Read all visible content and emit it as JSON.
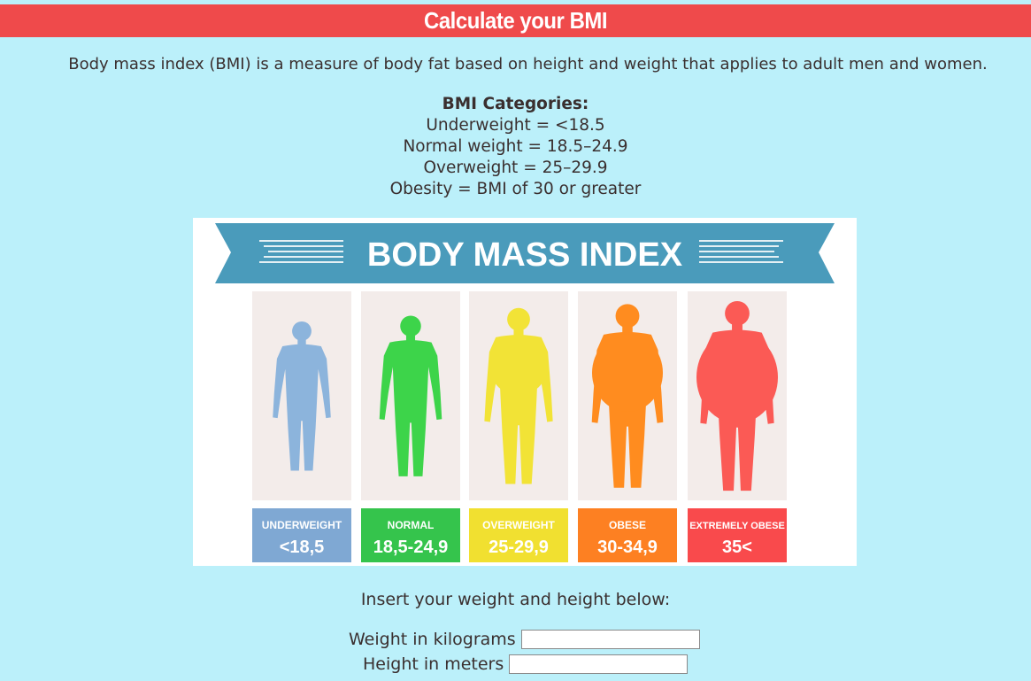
{
  "header": {
    "title": "Calculate your BMI"
  },
  "intro": "Body mass index (BMI) is a measure of body fat based on height and weight that applies to adult men and women.",
  "categories": {
    "title": "BMI Categories:",
    "lines": [
      "Underweight = <18.5",
      "Normal weight = 18.5–24.9",
      "Overweight = 25–29.9",
      "Obesity = BMI of 30 or greater"
    ]
  },
  "infographic": {
    "banner_title": "BODY MASS INDEX",
    "banner_color": "#4a9bbb",
    "panels": [
      {
        "label": "UNDERWEIGHT",
        "range": "<18,5",
        "color": "#8cb4dc",
        "label_bg": "#7fa8d3"
      },
      {
        "label": "NORMAL",
        "range": "18,5-24,9",
        "color": "#3dd44a",
        "label_bg": "#35c44c"
      },
      {
        "label": "OVERWEIGHT",
        "range": "25-29,9",
        "color": "#f2e336",
        "label_bg": "#f1e030"
      },
      {
        "label": "OBESE",
        "range": "30-34,9",
        "color": "#ff8c1f",
        "label_bg": "#fd8022"
      },
      {
        "label": "EXTREMELY OBESE",
        "range": "35<",
        "color": "#fb5a55",
        "label_bg": "#f94a4c"
      }
    ]
  },
  "form": {
    "prompt": "Insert your weight and height below:",
    "weight_label": "Weight in kilograms",
    "weight_value": "",
    "height_label": "Height in meters",
    "height_value": ""
  }
}
